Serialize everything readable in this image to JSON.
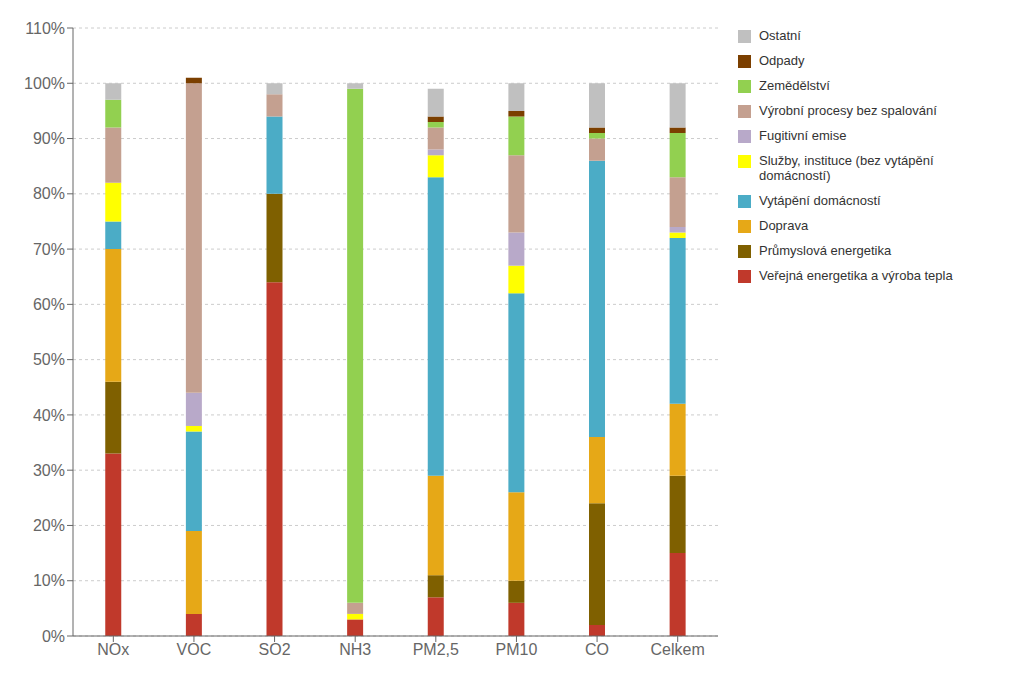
{
  "chart_data": {
    "type": "bar",
    "stacked": true,
    "grid": true,
    "legend": "right",
    "categories": [
      "NOx",
      "VOC",
      "SO2",
      "NH3",
      "PM2,5",
      "PM10",
      "CO",
      "Celkem"
    ],
    "series": [
      {
        "name": "Veřejná energetika a výroba tepla",
        "color": "#c0392b",
        "values": [
          33,
          4,
          64,
          3,
          7,
          6,
          2,
          15
        ]
      },
      {
        "name": "Průmyslová energetika",
        "color": "#7f6000",
        "values": [
          13,
          0,
          16,
          0,
          4,
          4,
          22,
          14
        ]
      },
      {
        "name": "Doprava",
        "color": "#e6a817",
        "values": [
          24,
          15,
          0,
          0,
          18,
          16,
          12,
          13
        ]
      },
      {
        "name": "Vytápění domácností",
        "color": "#4bacc6",
        "values": [
          5,
          18,
          14,
          0,
          54,
          36,
          50,
          30
        ]
      },
      {
        "name": "Služby, instituce (bez vytápění\ndomácností)",
        "color": "#ffff00",
        "values": [
          7,
          1,
          0,
          1,
          4,
          5,
          0,
          1
        ]
      },
      {
        "name": "Fugitivní emise",
        "color": "#b8a9c9",
        "values": [
          0,
          6,
          0,
          0,
          1,
          6,
          0,
          1
        ]
      },
      {
        "name": "Výrobní procesy bez spalování",
        "color": "#c4a090",
        "values": [
          10,
          56,
          4,
          2,
          4,
          14,
          4,
          9
        ]
      },
      {
        "name": "Zemědělství",
        "color": "#92d050",
        "values": [
          5,
          0,
          0,
          93,
          1,
          7,
          1,
          8
        ]
      },
      {
        "name": "Odpady",
        "color": "#7b3f00",
        "values": [
          0,
          1,
          0,
          0,
          1,
          1,
          1,
          1
        ]
      },
      {
        "name": "Ostatní",
        "color": "#c0c0c0",
        "values": [
          3,
          0,
          2,
          1,
          5,
          5,
          8,
          8
        ]
      }
    ],
    "ylim": [
      0,
      110
    ],
    "yticks": [
      {
        "value": 0,
        "label": "0%"
      },
      {
        "value": 10,
        "label": "10%"
      },
      {
        "value": 20,
        "label": "20%"
      },
      {
        "value": 30,
        "label": "30%"
      },
      {
        "value": 40,
        "label": "40%"
      },
      {
        "value": 50,
        "label": "50%"
      },
      {
        "value": 60,
        "label": "60%"
      },
      {
        "value": 70,
        "label": "70%"
      },
      {
        "value": 80,
        "label": "80%"
      },
      {
        "value": 90,
        "label": "90%"
      },
      {
        "value": 100,
        "label": "100%"
      },
      {
        "value": 110,
        "label": "110%"
      }
    ]
  }
}
